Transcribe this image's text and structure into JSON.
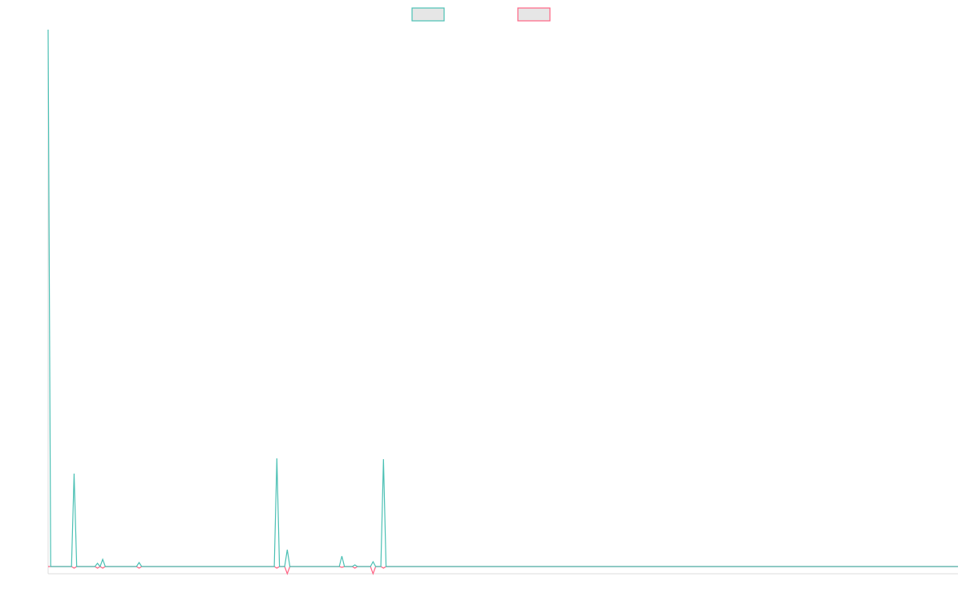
{
  "chart_data": {
    "type": "line",
    "legend": "top",
    "ylim": [
      -9,
      670
    ],
    "series": [
      {
        "color": "#ff6384",
        "values": [
          0,
          0,
          0,
          0,
          0,
          0,
          0,
          0,
          0,
          0,
          -2,
          0,
          0,
          0,
          0,
          0,
          0,
          0,
          0,
          -2,
          0,
          -2,
          0,
          0,
          0,
          0,
          0,
          0,
          0,
          0,
          0,
          0,
          0,
          0,
          0,
          -2,
          0,
          0,
          0,
          0,
          0,
          0,
          0,
          0,
          0,
          0,
          0,
          0,
          0,
          0,
          0,
          0,
          0,
          0,
          0,
          0,
          0,
          0,
          0,
          0,
          0,
          0,
          0,
          0,
          0,
          0,
          0,
          0,
          0,
          0,
          0,
          0,
          0,
          0,
          0,
          0,
          0,
          0,
          0,
          0,
          0,
          0,
          0,
          0,
          0,
          0,
          0,
          0,
          -2,
          0,
          0,
          0,
          -9,
          0,
          0,
          0,
          0,
          0,
          0,
          0,
          0,
          0,
          0,
          0,
          0,
          0,
          0,
          0,
          0,
          0,
          0,
          0,
          0,
          -1,
          0,
          0,
          0,
          0,
          -2,
          0,
          0,
          0,
          0,
          0,
          0,
          -9,
          0,
          0,
          0,
          -2,
          0,
          0,
          0,
          0,
          0,
          0,
          0,
          0,
          0,
          0,
          0,
          0,
          0,
          0,
          0,
          0,
          0,
          0,
          0,
          0,
          0,
          0,
          0,
          0,
          0,
          0,
          0,
          0,
          0,
          0,
          0,
          0,
          0,
          0,
          0,
          0,
          0,
          0,
          0,
          0,
          0,
          0,
          0,
          0,
          0,
          0,
          0,
          0,
          0,
          0,
          0,
          0,
          0,
          0,
          0,
          0,
          0,
          0,
          0,
          0,
          0,
          0,
          0,
          0,
          0,
          0,
          0,
          0,
          0,
          0,
          0,
          0,
          0,
          0,
          0,
          0,
          0,
          0,
          0,
          0,
          0,
          0,
          0,
          0,
          0,
          0,
          0,
          0,
          0,
          0,
          0,
          0,
          0,
          0,
          0,
          0,
          0,
          0,
          0,
          0,
          0,
          0,
          0,
          0,
          0,
          0,
          0,
          0,
          0,
          0,
          0,
          0,
          0,
          0,
          0,
          0,
          0,
          0,
          0,
          0,
          0,
          0,
          0,
          0,
          0,
          0,
          0,
          0,
          0,
          0,
          0,
          0,
          0,
          0,
          0,
          0,
          0,
          0,
          0,
          0,
          0,
          0,
          0,
          0,
          0,
          0,
          0,
          0,
          0,
          0,
          0,
          0,
          0,
          0,
          0,
          0,
          0,
          0,
          0,
          0,
          0,
          0,
          0,
          0,
          0,
          0,
          0,
          0,
          0,
          0,
          0,
          0,
          0,
          0,
          0,
          0,
          0,
          0,
          0,
          0,
          0,
          0,
          0,
          0,
          0,
          0,
          0,
          0,
          0,
          0,
          0,
          0,
          0,
          0,
          0,
          0,
          0,
          0,
          0,
          0,
          0,
          0,
          0,
          0,
          0,
          0,
          0,
          0,
          0,
          0,
          0,
          0,
          0,
          0,
          0,
          0,
          0,
          0,
          0,
          0,
          0
        ]
      },
      {
        "color": "#4bc0b4",
        "values": [
          670,
          0,
          0,
          0,
          0,
          0,
          0,
          0,
          0,
          0,
          116,
          0,
          0,
          0,
          0,
          0,
          0,
          0,
          0,
          4,
          0,
          9,
          0,
          0,
          0,
          0,
          0,
          0,
          0,
          0,
          0,
          0,
          0,
          0,
          0,
          5,
          0,
          0,
          0,
          0,
          0,
          0,
          0,
          0,
          0,
          0,
          0,
          0,
          0,
          0,
          0,
          0,
          0,
          0,
          0,
          0,
          0,
          0,
          0,
          0,
          0,
          0,
          0,
          0,
          0,
          0,
          0,
          0,
          0,
          0,
          0,
          0,
          0,
          0,
          0,
          0,
          0,
          0,
          0,
          0,
          0,
          0,
          0,
          0,
          0,
          0,
          0,
          0,
          135,
          0,
          0,
          0,
          21,
          0,
          0,
          0,
          0,
          0,
          0,
          0,
          0,
          0,
          0,
          0,
          0,
          0,
          0,
          0,
          0,
          0,
          0,
          0,
          0,
          13,
          0,
          0,
          0,
          0,
          2,
          0,
          0,
          0,
          0,
          0,
          0,
          6,
          0,
          0,
          0,
          134,
          0,
          0,
          0,
          0,
          0,
          0,
          0,
          0,
          0,
          0,
          0,
          0,
          0,
          0,
          0,
          0,
          0,
          0,
          0,
          0,
          0,
          0,
          0,
          0,
          0,
          0,
          0,
          0,
          0,
          0,
          0,
          0,
          0,
          0,
          0,
          0,
          0,
          0,
          0,
          0,
          0,
          0,
          0,
          0,
          0,
          0,
          0,
          0,
          0,
          0,
          0,
          0,
          0,
          0,
          0,
          0,
          0,
          0,
          0,
          0,
          0,
          0,
          0,
          0,
          0,
          0,
          0,
          0,
          0,
          0,
          0,
          0,
          0,
          0,
          0,
          0,
          0,
          0,
          0,
          0,
          0,
          0,
          0,
          0,
          0,
          0,
          0,
          0,
          0,
          0,
          0,
          0,
          0,
          0,
          0,
          0,
          0,
          0,
          0,
          0,
          0,
          0,
          0,
          0,
          0,
          0,
          0,
          0,
          0,
          0,
          0,
          0,
          0,
          0,
          0,
          0,
          0,
          0,
          0,
          0,
          0,
          0,
          0,
          0,
          0,
          0,
          0,
          0,
          0,
          0,
          0,
          0,
          0,
          0,
          0,
          0,
          0,
          0,
          0,
          0,
          0,
          0,
          0,
          0,
          0,
          0,
          0,
          0,
          0,
          0,
          0,
          0,
          0,
          0,
          0,
          0,
          0,
          0,
          0,
          0,
          0,
          0,
          0,
          0,
          0,
          0,
          0,
          0,
          0,
          0,
          0,
          0,
          0,
          0,
          0,
          0,
          0,
          0,
          0,
          0,
          0,
          0,
          0,
          0,
          0,
          0,
          0,
          0,
          0,
          0,
          0,
          0,
          0,
          0,
          0,
          0,
          0,
          0,
          0,
          0,
          0,
          0,
          0,
          0,
          0,
          0,
          0,
          0,
          0,
          0,
          0,
          0,
          0,
          0,
          0,
          0,
          0,
          0,
          0,
          0,
          0
        ]
      }
    ]
  }
}
